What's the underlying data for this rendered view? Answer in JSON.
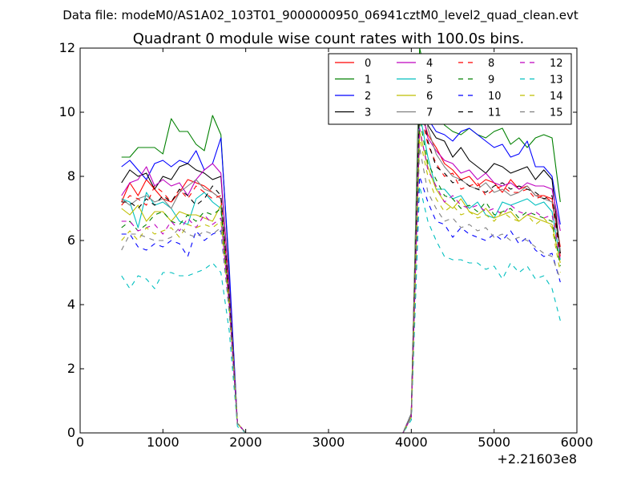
{
  "chart_data": {
    "type": "line",
    "suptitle": "Data file: modeM0/AS1A02_103T01_9000000950_06941cztM0_level2_quad_clean.evt",
    "title": "Quadrant 0 module wise count rates with 100.0s bins.",
    "xlabel": "",
    "ylabel": "",
    "x_offset_label": "+2.21603e8",
    "xlim": [
      0,
      6000
    ],
    "ylim": [
      0,
      12
    ],
    "xticks": [
      0,
      1000,
      2000,
      3000,
      4000,
      5000,
      6000
    ],
    "xtick_labels": [
      "0",
      "1000",
      "2000",
      "3000",
      "4000",
      "5000",
      "6000"
    ],
    "yticks": [
      0,
      2,
      4,
      6,
      8,
      10,
      12
    ],
    "ytick_labels": [
      "0",
      "2",
      "4",
      "6",
      "8",
      "10",
      "12"
    ],
    "grid": false,
    "legend_position": "top-right",
    "legend_columns": 4,
    "x": [
      500,
      600,
      700,
      800,
      900,
      1000,
      1100,
      1200,
      1300,
      1400,
      1500,
      1600,
      1700,
      1800,
      1900,
      2000,
      2100,
      2200,
      2300,
      2400,
      2500,
      2600,
      2700,
      2800,
      2900,
      3000,
      3100,
      3200,
      3300,
      3400,
      3500,
      3600,
      3700,
      3800,
      3900,
      4000,
      4100,
      4200,
      4300,
      4400,
      4500,
      4600,
      4700,
      4800,
      4900,
      5000,
      5100,
      5200,
      5300,
      5400,
      5500,
      5600,
      5700,
      5800
    ],
    "series": [
      {
        "name": "0",
        "color": "#ff0000",
        "dash": "solid",
        "values": [
          7.2,
          7.8,
          7.4,
          7.9,
          7.6,
          7.3,
          7.2,
          7.5,
          7.9,
          7.8,
          7.7,
          7.5,
          7.3,
          4.2,
          0.3,
          0,
          0,
          0,
          0,
          0,
          0,
          0,
          0,
          0,
          0,
          0,
          0,
          0,
          0,
          0,
          0,
          0,
          0,
          0,
          0,
          0.5,
          10.2,
          9.3,
          8.9,
          8.4,
          8.2,
          7.9,
          8.0,
          7.7,
          7.9,
          7.8,
          7.5,
          7.9,
          7.6,
          7.7,
          7.4,
          7.4,
          7.3,
          5.8
        ]
      },
      {
        "name": "1",
        "color": "#008000",
        "dash": "solid",
        "values": [
          8.6,
          8.6,
          8.9,
          8.9,
          8.9,
          8.7,
          9.8,
          9.4,
          9.4,
          9.0,
          8.8,
          9.9,
          9.3,
          5.0,
          0.3,
          0,
          0,
          0,
          0,
          0,
          0,
          0,
          0,
          0,
          0,
          0,
          0,
          0,
          0,
          0,
          0,
          0,
          0,
          0,
          0,
          0.6,
          12.0,
          10.9,
          10.0,
          9.6,
          9.4,
          9.3,
          9.5,
          9.3,
          9.2,
          9.4,
          9.5,
          9.0,
          9.2,
          8.9,
          9.2,
          9.3,
          9.2,
          7.2
        ]
      },
      {
        "name": "2",
        "color": "#0000ff",
        "dash": "solid",
        "values": [
          8.3,
          8.5,
          8.2,
          7.9,
          8.4,
          8.5,
          8.3,
          8.5,
          8.4,
          8.8,
          8.2,
          8.4,
          9.2,
          5.2,
          0.3,
          0,
          0,
          0,
          0,
          0,
          0,
          0,
          0,
          0,
          0,
          0,
          0,
          0,
          0,
          0,
          0,
          0,
          0,
          0,
          0,
          0.6,
          11.0,
          9.8,
          9.4,
          9.3,
          9.1,
          9.4,
          9.5,
          9.3,
          9.1,
          8.9,
          9.0,
          8.6,
          8.7,
          9.1,
          8.3,
          8.3,
          8.0,
          6.5
        ]
      },
      {
        "name": "3",
        "color": "#000000",
        "dash": "solid",
        "values": [
          7.8,
          8.2,
          8.0,
          8.1,
          7.6,
          8.0,
          7.9,
          8.3,
          8.4,
          8.2,
          8.1,
          7.9,
          8.0,
          4.6,
          0.3,
          0,
          0,
          0,
          0,
          0,
          0,
          0,
          0,
          0,
          0,
          0,
          0,
          0,
          0,
          0,
          0,
          0,
          0,
          0,
          0,
          0.6,
          11.2,
          9.6,
          9.2,
          9.1,
          8.6,
          8.9,
          8.5,
          8.3,
          8.1,
          8.4,
          8.3,
          8.1,
          8.2,
          8.3,
          7.9,
          8.2,
          7.9,
          5.6
        ]
      },
      {
        "name": "4",
        "color": "#bf00bf",
        "dash": "solid",
        "values": [
          7.4,
          7.8,
          7.9,
          8.3,
          7.7,
          7.9,
          7.7,
          7.8,
          7.4,
          7.9,
          8.2,
          8.4,
          8.1,
          4.6,
          0.3,
          0,
          0,
          0,
          0,
          0,
          0,
          0,
          0,
          0,
          0,
          0,
          0,
          0,
          0,
          0,
          0,
          0,
          0,
          0,
          0,
          0.5,
          10.4,
          9.2,
          8.8,
          8.5,
          8.4,
          8.1,
          8.2,
          7.9,
          8.1,
          7.8,
          7.7,
          7.8,
          7.6,
          7.8,
          7.7,
          7.7,
          7.6,
          6.3
        ]
      },
      {
        "name": "5",
        "color": "#00bfbf",
        "dash": "solid",
        "values": [
          7.3,
          7.2,
          6.4,
          7.5,
          7.1,
          7.2,
          7.0,
          6.6,
          6.5,
          7.3,
          7.5,
          7.2,
          7.0,
          4.4,
          0.3,
          0,
          0,
          0,
          0,
          0,
          0,
          0,
          0,
          0,
          0,
          0,
          0,
          0,
          0,
          0,
          0,
          0,
          0,
          0,
          0,
          0.5,
          10.0,
          8.6,
          7.6,
          7.6,
          7.3,
          7.4,
          7.0,
          7.2,
          6.8,
          6.7,
          7.2,
          7.1,
          7.2,
          7.3,
          7.1,
          7.2,
          6.9,
          5.4
        ]
      },
      {
        "name": "6",
        "color": "#bfbf00",
        "dash": "solid",
        "values": [
          7.0,
          6.8,
          7.1,
          6.6,
          6.9,
          6.9,
          6.6,
          6.9,
          6.8,
          6.8,
          6.7,
          6.6,
          7.1,
          4.3,
          0.3,
          0,
          0,
          0,
          0,
          0,
          0,
          0,
          0,
          0,
          0,
          0,
          0,
          0,
          0,
          0,
          0,
          0,
          0,
          0,
          0,
          0.5,
          9.4,
          8.3,
          7.6,
          7.2,
          7.0,
          7.3,
          6.9,
          6.8,
          7.0,
          6.7,
          6.8,
          6.9,
          6.6,
          6.8,
          6.7,
          6.6,
          6.5,
          5.3
        ]
      },
      {
        "name": "7",
        "color": "#808080",
        "dash": "solid",
        "values": [
          7.3,
          7.1,
          7.3,
          7.4,
          7.2,
          7.3,
          7.0,
          7.5,
          7.7,
          7.9,
          7.6,
          7.5,
          7.3,
          4.3,
          0.3,
          0,
          0,
          0,
          0,
          0,
          0,
          0,
          0,
          0,
          0,
          0,
          0,
          0,
          0,
          0,
          0,
          0,
          0,
          0,
          0,
          0.6,
          11.5,
          9.5,
          8.7,
          8.3,
          8.0,
          7.9,
          7.7,
          7.6,
          7.8,
          7.5,
          7.6,
          7.4,
          7.5,
          7.7,
          7.4,
          7.3,
          7.2,
          5.7
        ]
      },
      {
        "name": "8",
        "color": "#ff0000",
        "dash": "dashed",
        "values": [
          7.1,
          7.4,
          7.3,
          7.1,
          7.7,
          7.5,
          7.2,
          7.6,
          7.3,
          7.7,
          7.5,
          7.3,
          7.4,
          4.2,
          0.3,
          0,
          0,
          0,
          0,
          0,
          0,
          0,
          0,
          0,
          0,
          0,
          0,
          0,
          0,
          0,
          0,
          0,
          0,
          0,
          0,
          0.5,
          10.1,
          9.0,
          8.4,
          8.0,
          8.1,
          7.6,
          7.7,
          7.8,
          7.4,
          7.6,
          7.7,
          7.5,
          7.5,
          7.6,
          7.3,
          7.4,
          7.2,
          5.5
        ]
      },
      {
        "name": "9",
        "color": "#008000",
        "dash": "dashed",
        "values": [
          6.4,
          6.6,
          6.3,
          6.5,
          6.8,
          6.9,
          6.6,
          6.5,
          6.8,
          6.6,
          6.9,
          6.8,
          7.0,
          4.0,
          0.3,
          0,
          0,
          0,
          0,
          0,
          0,
          0,
          0,
          0,
          0,
          0,
          0,
          0,
          0,
          0,
          0,
          0,
          0,
          0,
          0,
          0.5,
          9.8,
          8.4,
          7.9,
          7.4,
          7.3,
          7.0,
          7.1,
          6.9,
          7.2,
          6.8,
          6.9,
          7.0,
          6.7,
          6.9,
          6.8,
          6.7,
          6.6,
          5.2
        ]
      },
      {
        "name": "10",
        "color": "#0000ff",
        "dash": "dashed",
        "values": [
          6.2,
          6.2,
          5.8,
          5.7,
          5.9,
          5.8,
          6.0,
          5.9,
          5.5,
          6.3,
          6.0,
          6.2,
          6.3,
          3.8,
          0.3,
          0,
          0,
          0,
          0,
          0,
          0,
          0,
          0,
          0,
          0,
          0,
          0,
          0,
          0,
          0,
          0,
          0,
          0,
          0,
          0,
          0.5,
          8.0,
          7.2,
          6.6,
          6.5,
          6.1,
          6.4,
          6.2,
          6.1,
          6.0,
          6.2,
          6.0,
          6.3,
          5.9,
          6.1,
          5.7,
          5.5,
          5.6,
          4.7
        ]
      },
      {
        "name": "11",
        "color": "#000000",
        "dash": "dashed",
        "values": [
          7.2,
          7.2,
          7.0,
          7.3,
          7.1,
          7.4,
          7.2,
          7.6,
          7.4,
          7.1,
          7.3,
          7.7,
          7.4,
          4.3,
          0.3,
          0,
          0,
          0,
          0,
          0,
          0,
          0,
          0,
          0,
          0,
          0,
          0,
          0,
          0,
          0,
          0,
          0,
          0,
          0,
          0,
          0.5,
          10.5,
          9.1,
          8.3,
          8.1,
          7.8,
          7.9,
          7.7,
          7.6,
          7.5,
          7.7,
          7.8,
          7.6,
          7.7,
          7.6,
          7.5,
          7.3,
          7.4,
          5.6
        ]
      },
      {
        "name": "12",
        "color": "#bf00bf",
        "dash": "dashed",
        "values": [
          6.6,
          6.6,
          6.3,
          6.4,
          6.5,
          6.2,
          6.6,
          6.3,
          6.7,
          6.4,
          6.8,
          6.5,
          6.7,
          4.0,
          0.3,
          0,
          0,
          0,
          0,
          0,
          0,
          0,
          0,
          0,
          0,
          0,
          0,
          0,
          0,
          0,
          0,
          0,
          0,
          0,
          0,
          0.5,
          9.5,
          8.2,
          7.7,
          7.2,
          7.4,
          7.1,
          7.0,
          7.1,
          6.9,
          7.0,
          6.8,
          7.1,
          6.9,
          6.8,
          6.9,
          6.7,
          6.8,
          5.4
        ]
      },
      {
        "name": "13",
        "color": "#00bfbf",
        "dash": "dashed",
        "values": [
          4.9,
          4.5,
          4.9,
          4.8,
          4.5,
          5.0,
          5.0,
          4.9,
          4.9,
          5.0,
          5.1,
          5.3,
          5.0,
          3.2,
          0.2,
          0,
          0,
          0,
          0,
          0,
          0,
          0,
          0,
          0,
          0,
          0,
          0,
          0,
          0,
          0,
          0,
          0,
          0,
          0,
          0,
          0.4,
          7.7,
          6.6,
          6.0,
          5.5,
          5.4,
          5.4,
          5.3,
          5.3,
          5.1,
          5.2,
          4.8,
          5.3,
          5.0,
          5.2,
          4.8,
          4.9,
          4.5,
          3.5
        ]
      },
      {
        "name": "14",
        "color": "#bfbf00",
        "dash": "dashed",
        "values": [
          6.0,
          6.3,
          6.0,
          6.4,
          6.2,
          6.3,
          6.4,
          6.1,
          6.5,
          6.4,
          6.5,
          6.4,
          6.6,
          3.9,
          0.3,
          0,
          0,
          0,
          0,
          0,
          0,
          0,
          0,
          0,
          0,
          0,
          0,
          0,
          0,
          0,
          0,
          0,
          0,
          0,
          0,
          0.5,
          9.2,
          8.0,
          7.3,
          6.9,
          7.1,
          6.8,
          6.9,
          6.7,
          6.8,
          6.6,
          6.9,
          6.7,
          6.6,
          6.8,
          6.5,
          6.7,
          6.4,
          5.0
        ]
      },
      {
        "name": "15",
        "color": "#808080",
        "dash": "dashed",
        "values": [
          5.7,
          6.2,
          6.2,
          6.1,
          6.0,
          6.0,
          6.1,
          6.4,
          6.2,
          6.1,
          6.3,
          6.2,
          6.4,
          3.8,
          0.3,
          0,
          0,
          0,
          0,
          0,
          0,
          0,
          0,
          0,
          0,
          0,
          0,
          0,
          0,
          0,
          0,
          0,
          0,
          0,
          0,
          0.5,
          8.9,
          7.5,
          7.0,
          6.6,
          6.7,
          6.4,
          6.5,
          6.3,
          6.4,
          6.1,
          6.2,
          6.0,
          6.1,
          6.0,
          5.8,
          5.6,
          5.5,
          4.8
        ]
      }
    ]
  }
}
